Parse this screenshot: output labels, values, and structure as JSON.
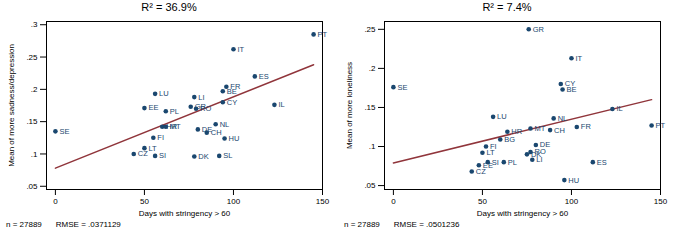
{
  "chart_data": [
    {
      "type": "scatter",
      "title": "R² = 36.9%",
      "x_label": "Days with stringency > 60",
      "y_label": "Mean of more sadness/depression",
      "labels": [
        "PT",
        "IT",
        "ES",
        "FR",
        "BE",
        "CY",
        "IL",
        "LU",
        "LI",
        "EE",
        "PL",
        "GR",
        "RO",
        "HR",
        "MT",
        "DE",
        "CH",
        "NL",
        "HU",
        "DK",
        "SL",
        "FI",
        "LT",
        "CZ",
        "SI",
        "SE"
      ],
      "x": [
        145,
        100,
        112,
        96,
        94,
        94,
        123,
        56,
        78,
        50,
        62,
        76,
        79,
        60,
        62,
        80,
        85,
        90,
        95,
        78,
        92,
        55,
        50,
        44,
        56,
        0
      ],
      "y": [
        0.285,
        0.262,
        0.22,
        0.204,
        0.197,
        0.18,
        0.176,
        0.193,
        0.188,
        0.171,
        0.166,
        0.173,
        0.17,
        0.142,
        0.142,
        0.138,
        0.133,
        0.146,
        0.124,
        0.096,
        0.097,
        0.125,
        0.109,
        0.1,
        0.097,
        0.135
      ],
      "color": "#1a476f",
      "marker": "circle",
      "fit": {
        "x": [
          0,
          145
        ],
        "y": [
          0.078,
          0.238
        ],
        "color": "#90353b",
        "line_style": "solid"
      },
      "notes": [
        "n = 27889",
        "RMSE = .0371129"
      ],
      "xlim": [
        -5,
        150
      ],
      "ylim": [
        0.045,
        0.305
      ],
      "xticks": [
        0,
        50,
        100,
        150
      ],
      "yticks": [
        {
          "value": 0.05,
          "label": ".05"
        },
        {
          "value": 0.1,
          "label": ".1"
        },
        {
          "value": 0.15,
          "label": ".15"
        },
        {
          "value": 0.2,
          "label": ".2"
        },
        {
          "value": 0.25,
          "label": ".25"
        },
        {
          "value": 0.3,
          "label": ".3"
        }
      ],
      "grid": false
    },
    {
      "type": "scatter",
      "title": "R² = 7.4%",
      "x_label": "Days with stringency > 60",
      "y_label": "Mean of more loneliness",
      "labels": [
        "GR",
        "IT",
        "CY",
        "BE",
        "SE",
        "IL",
        "LU",
        "NL",
        "PT",
        "FR",
        "MT",
        "CH",
        "HR",
        "BG",
        "DE",
        "FI",
        "LT",
        "RO",
        "DK",
        "LI",
        "SI",
        "PL",
        "ES",
        "EE",
        "CZ",
        "HU"
      ],
      "x": [
        76,
        100,
        94,
        95,
        0,
        123,
        56,
        90,
        145,
        103,
        77,
        88,
        64,
        60,
        80,
        52,
        50,
        77,
        75,
        78,
        53,
        62,
        112,
        48,
        44,
        96
      ],
      "y": [
        0.25,
        0.213,
        0.18,
        0.173,
        0.176,
        0.148,
        0.138,
        0.136,
        0.127,
        0.125,
        0.123,
        0.121,
        0.119,
        0.109,
        0.102,
        0.1,
        0.092,
        0.093,
        0.09,
        0.083,
        0.08,
        0.08,
        0.08,
        0.076,
        0.068,
        0.057
      ],
      "color": "#1a476f",
      "marker": "circle",
      "fit": {
        "x": [
          0,
          145
        ],
        "y": [
          0.079,
          0.16
        ],
        "color": "#90353b",
        "line_style": "solid"
      },
      "notes": [
        "n = 27889",
        "RMSE = .0501236"
      ],
      "xlim": [
        -5,
        150
      ],
      "ylim": [
        0.045,
        0.26
      ],
      "xticks": [
        0,
        50,
        100,
        150
      ],
      "yticks": [
        {
          "value": 0.05,
          "label": ".05"
        },
        {
          "value": 0.1,
          "label": ".1"
        },
        {
          "value": 0.15,
          "label": ".15"
        },
        {
          "value": 0.2,
          "label": ".2"
        },
        {
          "value": 0.25,
          "label": ".25"
        }
      ],
      "grid": false
    }
  ]
}
